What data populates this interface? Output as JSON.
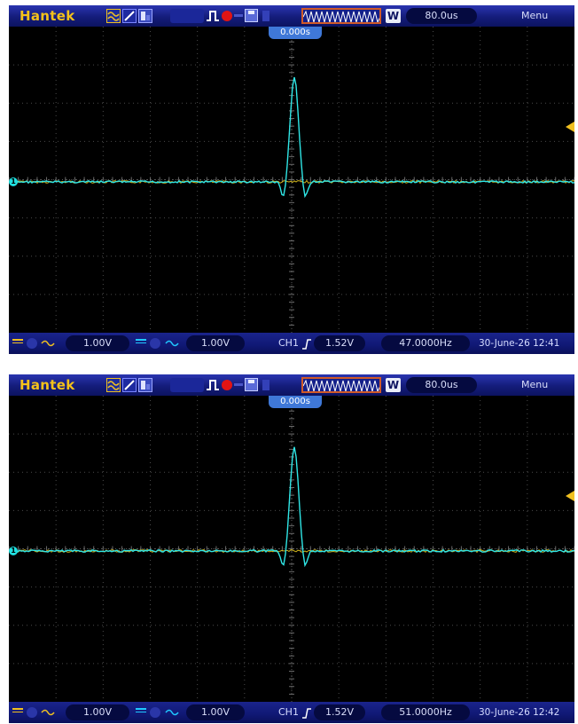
{
  "panels": [
    {
      "brand": "Hantek",
      "timebase": "80.0us",
      "menu_label": "Menu",
      "window_button": "W",
      "trigger_time": "0.000s",
      "channel_marker": "1",
      "ch1_coupling": "DC",
      "ch1_scale": "1.00V",
      "ch2_coupling": "DC",
      "ch2_scale": "1.00V",
      "trigger_source": "CH1",
      "trigger_level": "1.52V",
      "frequency": "47.0000Hz",
      "datetime": "30-June-26 12:41"
    },
    {
      "brand": "Hantek",
      "timebase": "80.0us",
      "menu_label": "Menu",
      "window_button": "W",
      "trigger_time": "0.000s",
      "channel_marker": "1",
      "ch1_coupling": "DC",
      "ch1_scale": "1.00V",
      "ch2_coupling": "DC",
      "ch2_scale": "1.00V",
      "trigger_source": "CH1",
      "trigger_level": "1.52V",
      "frequency": "51.0000Hz",
      "datetime": "30-June-26 12:42"
    }
  ],
  "colors": {
    "trace_ch1": "#2fe6e6",
    "trace_ch2": "#f0d020",
    "accent_yellow": "#f0c020",
    "bar_blue": "#141c7a",
    "screen": "#000000"
  },
  "icons": [
    "ac-coupling-icon",
    "xy-mode-icon",
    "cursor-icon",
    "pulse-icon",
    "run-stop-icon",
    "save-icon",
    "timebase-strip-icon",
    "rising-edge-icon"
  ]
}
